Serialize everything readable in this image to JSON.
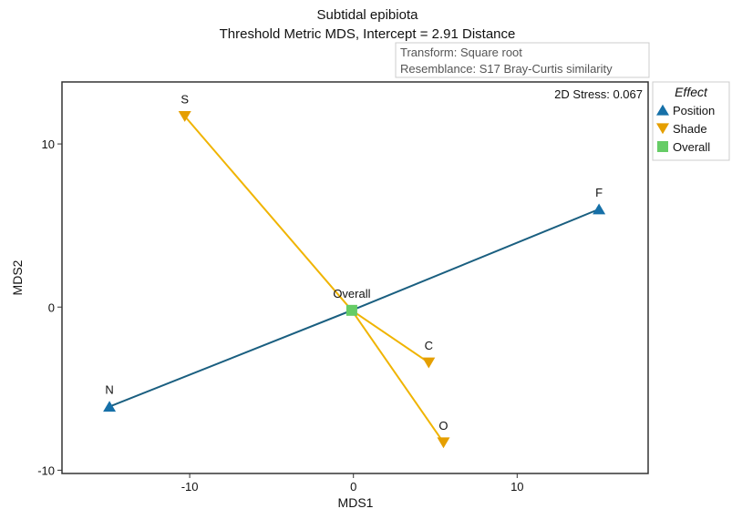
{
  "chart_data": {
    "type": "scatter",
    "title": "Subtidal epibiota",
    "subtitle": "Threshold Metric MDS, Intercept = 2.91 Distance",
    "info": [
      "Transform: Square root",
      "Resemblance: S17 Bray-Curtis similarity"
    ],
    "stress": "2D Stress: 0.067",
    "xlabel": "MDS1",
    "ylabel": "MDS2",
    "xlim": [
      -17.8,
      18.0
    ],
    "ylim": [
      -10.2,
      13.8
    ],
    "xticks": [
      -10,
      0,
      10
    ],
    "yticks": [
      -10,
      0,
      10
    ],
    "legend": {
      "title": "Effect",
      "placement": "right",
      "entries": [
        {
          "label": "Position",
          "shape": "triangle-up",
          "color": "#1670a8"
        },
        {
          "label": "Shade",
          "shape": "triangle-down",
          "color": "#e59f00"
        },
        {
          "label": "Overall",
          "shape": "square",
          "color": "#66cc66"
        }
      ]
    },
    "points": [
      {
        "label": "Overall",
        "x": -0.1,
        "y": -0.2,
        "group": "Overall"
      },
      {
        "label": "F",
        "x": 15.0,
        "y": 6.0,
        "group": "Position"
      },
      {
        "label": "N",
        "x": -14.9,
        "y": -6.1,
        "group": "Position"
      },
      {
        "label": "S",
        "x": -10.3,
        "y": 11.7,
        "group": "Shade"
      },
      {
        "label": "C",
        "x": 4.6,
        "y": -3.4,
        "group": "Shade"
      },
      {
        "label": "O",
        "x": 5.5,
        "y": -8.3,
        "group": "Shade"
      }
    ],
    "lines": [
      {
        "from": "Overall",
        "to": "F",
        "color": "#1a5f80"
      },
      {
        "from": "Overall",
        "to": "N",
        "color": "#1a5f80"
      },
      {
        "from": "Overall",
        "to": "S",
        "color": "#f0b400"
      },
      {
        "from": "Overall",
        "to": "C",
        "color": "#f0b400"
      },
      {
        "from": "Overall",
        "to": "O",
        "color": "#f0b400"
      }
    ]
  }
}
